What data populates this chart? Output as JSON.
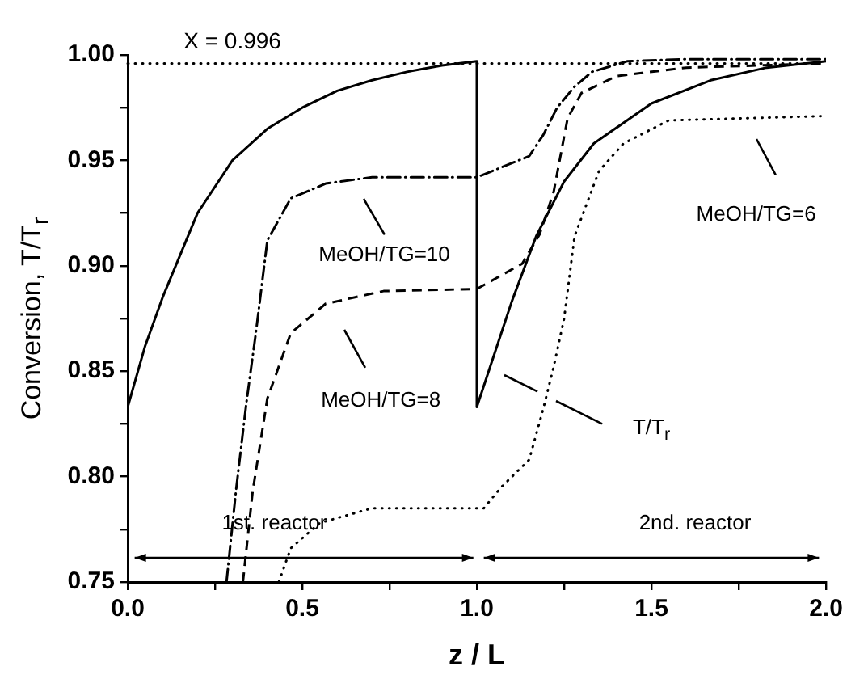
{
  "chart_data": {
    "type": "line",
    "xlabel": "z / L",
    "ylabel": "Conversion, T/T$_{r}$",
    "xlim": [
      0,
      2
    ],
    "ylim": [
      0.75,
      1.0
    ],
    "xticks": [
      {
        "value": 0,
        "label": "0.0"
      },
      {
        "value": 0.25,
        "label": null
      },
      {
        "value": 0.5,
        "label": "0.5"
      },
      {
        "value": 0.75,
        "label": null
      },
      {
        "value": 1,
        "label": "1.0"
      },
      {
        "value": 1.25,
        "label": null
      },
      {
        "value": 1.5,
        "label": "1.5"
      },
      {
        "value": 1.75,
        "label": null
      },
      {
        "value": 2,
        "label": "2.0"
      }
    ],
    "yticks": [
      {
        "value": 0.75,
        "label": "0.75"
      },
      {
        "value": 0.775,
        "label": null
      },
      {
        "value": 0.8,
        "label": "0.80"
      },
      {
        "value": 0.825,
        "label": null
      },
      {
        "value": 0.85,
        "label": "0.85"
      },
      {
        "value": 0.875,
        "label": null
      },
      {
        "value": 0.9,
        "label": "0.90"
      },
      {
        "value": 0.925,
        "label": null
      },
      {
        "value": 0.95,
        "label": "0.95"
      },
      {
        "value": 0.975,
        "label": null
      },
      {
        "value": 1.0,
        "label": "1.00"
      }
    ],
    "grid": false,
    "legend": false,
    "marker": "none",
    "series": [
      {
        "color": "#000000",
        "line_style": "solid",
        "x": [
          0,
          0.05,
          0.1,
          0.2,
          0.3,
          0.4,
          0.5,
          0.6,
          0.7,
          0.8,
          0.9,
          1.0,
          1.0,
          1.07,
          1.1,
          1.17,
          1.25,
          1.335,
          1.5,
          1.67,
          1.83,
          2.0
        ],
        "values": [
          0.833,
          0.862,
          0.885,
          0.925,
          0.95,
          0.965,
          0.975,
          0.983,
          0.988,
          0.992,
          0.995,
          0.997,
          0.833,
          0.868,
          0.883,
          0.914,
          0.94,
          0.958,
          0.977,
          0.988,
          0.994,
          0.997
        ]
      },
      {
        "color": "#000000",
        "line_style": "dashdot",
        "x": [
          0.283,
          0.31,
          0.34,
          0.367,
          0.4,
          0.467,
          0.567,
          0.7,
          1.0,
          1.15,
          1.19,
          1.23,
          1.28,
          1.33,
          1.43,
          1.6,
          2.0
        ],
        "values": [
          0.75,
          0.793,
          0.835,
          0.868,
          0.912,
          0.932,
          0.939,
          0.942,
          0.942,
          0.952,
          0.962,
          0.975,
          0.985,
          0.992,
          0.997,
          0.998,
          0.998
        ]
      },
      {
        "color": "#000000",
        "line_style": "dashed",
        "x": [
          0.33,
          0.358,
          0.4,
          0.467,
          0.567,
          0.733,
          1.0,
          1.13,
          1.18,
          1.22,
          1.26,
          1.3,
          1.4,
          1.6,
          2.0
        ],
        "values": [
          0.75,
          0.793,
          0.837,
          0.868,
          0.882,
          0.888,
          0.889,
          0.901,
          0.915,
          0.935,
          0.97,
          0.982,
          0.99,
          0.994,
          0.996
        ]
      },
      {
        "color": "#000000",
        "line_style": "dotted",
        "x": [
          0.433,
          0.467,
          0.55,
          0.7,
          1.02,
          1.07,
          1.15,
          1.19,
          1.22,
          1.25,
          1.28,
          1.35,
          1.42,
          1.55,
          2.0
        ],
        "values": [
          0.75,
          0.766,
          0.778,
          0.785,
          0.785,
          0.795,
          0.808,
          0.832,
          0.852,
          0.875,
          0.914,
          0.945,
          0.958,
          0.969,
          0.971
        ]
      }
    ],
    "ref_lines": [
      {
        "axis": "y",
        "value": 0.996,
        "label": "X = 0.996",
        "line_style": "dotted",
        "color": "#000000"
      }
    ],
    "annotations": [
      "MeOH/TG=10",
      "MeOH/TG=8",
      "MeOH/TG=6",
      "T/T$_{r}$",
      "1st. reactor",
      "2nd. reactor"
    ]
  }
}
